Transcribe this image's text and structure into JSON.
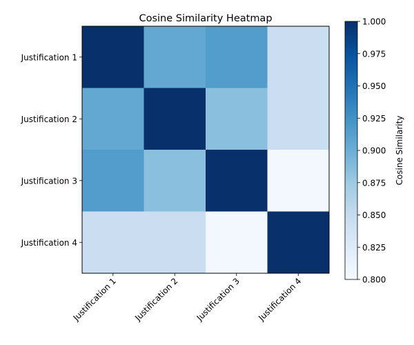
{
  "chart_data": {
    "type": "heatmap",
    "title": "Cosine Similarity Heatmap",
    "rows": [
      "Justification 1",
      "Justification 2",
      "Justification 3",
      "Justification 4"
    ],
    "cols": [
      "Justification 1",
      "Justification 2",
      "Justification 3",
      "Justification 4"
    ],
    "values": [
      [
        1.0,
        0.905,
        0.915,
        0.845
      ],
      [
        0.905,
        1.0,
        0.885,
        0.845
      ],
      [
        0.915,
        0.885,
        1.0,
        0.805
      ],
      [
        0.845,
        0.845,
        0.805,
        1.0
      ]
    ],
    "colormap": "Blues",
    "colorbar": {
      "label": "Cosine Similarity",
      "vmin": 0.8,
      "vmax": 1.0,
      "ticks": [
        "0.800",
        "0.825",
        "0.850",
        "0.875",
        "0.900",
        "0.925",
        "0.950",
        "0.975",
        "1.000"
      ]
    },
    "xtick_rotation_deg": 45,
    "grid": false
  }
}
